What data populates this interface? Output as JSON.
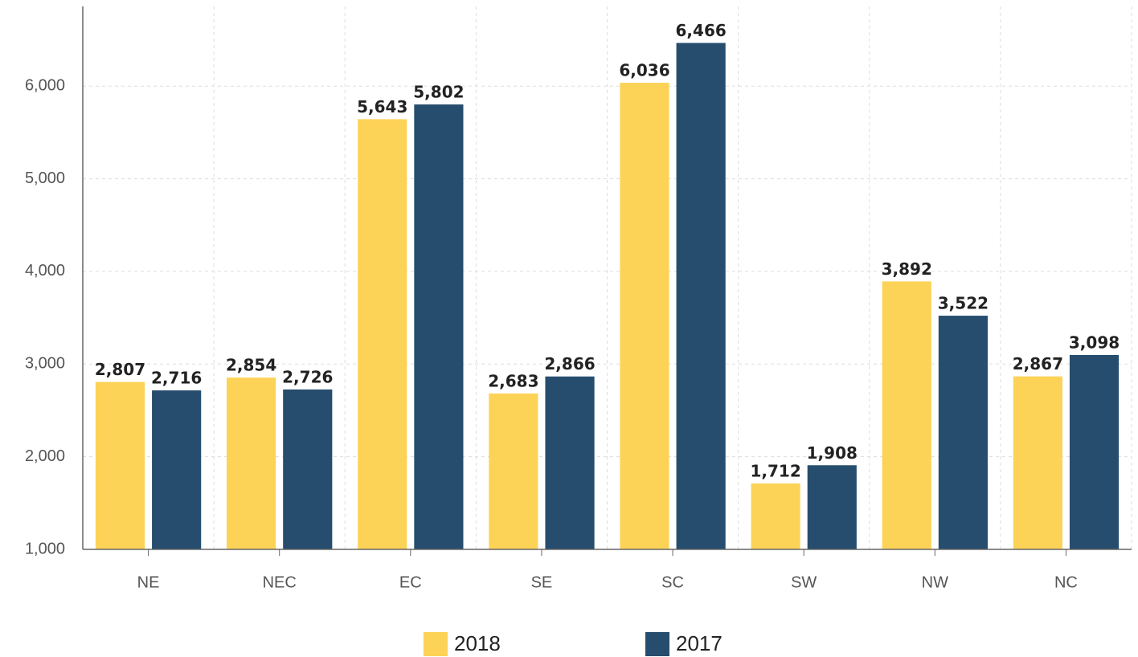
{
  "chart_data": {
    "type": "bar",
    "categories": [
      "NE",
      "NEC",
      "EC",
      "SE",
      "SC",
      "SW",
      "NW",
      "NC"
    ],
    "series": [
      {
        "name": "2018",
        "color": "#fdd357",
        "values": [
          2807,
          2854,
          5643,
          2683,
          6036,
          1712,
          3892,
          2867
        ],
        "value_labels": [
          "2,807",
          "2,854",
          "5,643",
          "2,683",
          "6,036",
          "1,712",
          "3,892",
          "2,867"
        ]
      },
      {
        "name": "2017",
        "color": "#264d6e",
        "values": [
          2716,
          2726,
          5802,
          2866,
          6466,
          1908,
          3522,
          3098
        ],
        "value_labels": [
          "2,716",
          "2,726",
          "5,802",
          "2,866",
          "6,466",
          "1,908",
          "3,522",
          "3,098"
        ]
      }
    ],
    "ylim": [
      1000,
      6860
    ],
    "yticks": [
      {
        "value": 1000,
        "label": "1,000"
      },
      {
        "value": 2000,
        "label": "2,000"
      },
      {
        "value": 3000,
        "label": "3,000"
      },
      {
        "value": 4000,
        "label": "4,000"
      },
      {
        "value": 5000,
        "label": "5,000"
      },
      {
        "value": 6000,
        "label": "6,000"
      }
    ],
    "grid": true,
    "legend": "bottom"
  }
}
